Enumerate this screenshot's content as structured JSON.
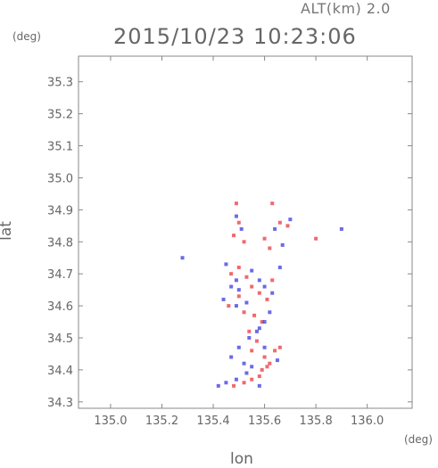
{
  "header": {
    "altitude": "ALT(km) 2.0",
    "datetime": "2015/10/23 10:23:06"
  },
  "axes": {
    "y_unit": "(deg)",
    "x_unit": "(deg)",
    "y_label": "lat",
    "x_label": "lon"
  },
  "chart_data": {
    "type": "scatter",
    "title": "2015/10/23 10:23:06",
    "subtitle": "ALT(km) 2.0",
    "xlabel": "lon",
    "ylabel": "lat",
    "xlim": [
      134.875,
      136.175
    ],
    "ylim": [
      34.28,
      35.38
    ],
    "xticks": [
      "135.0",
      "135.2",
      "135.4",
      "135.6",
      "135.8",
      "136.0"
    ],
    "yticks": [
      "34.3",
      "34.4",
      "34.5",
      "34.6",
      "34.7",
      "34.8",
      "34.9",
      "35.0",
      "35.1",
      "35.2",
      "35.3"
    ],
    "grid": false,
    "colors": {
      "positive": "#e8383d",
      "negative": "#3a3adf",
      "axis": "#888888"
    },
    "series": [
      {
        "values": [
          [
            135.49,
            34.92
          ],
          [
            135.5,
            34.86
          ],
          [
            135.48,
            34.82
          ],
          [
            135.52,
            34.8
          ],
          [
            135.63,
            34.92
          ],
          [
            135.66,
            34.86
          ],
          [
            135.69,
            34.85
          ],
          [
            135.6,
            34.81
          ],
          [
            135.62,
            34.78
          ],
          [
            135.8,
            34.81
          ],
          [
            135.47,
            34.7
          ],
          [
            135.5,
            34.72
          ],
          [
            135.53,
            34.69
          ],
          [
            135.55,
            34.66
          ],
          [
            135.58,
            34.64
          ],
          [
            135.61,
            34.62
          ],
          [
            135.63,
            34.68
          ],
          [
            135.5,
            34.63
          ],
          [
            135.46,
            34.6
          ],
          [
            135.52,
            34.58
          ],
          [
            135.56,
            34.57
          ],
          [
            135.59,
            34.55
          ],
          [
            135.54,
            34.52
          ],
          [
            135.57,
            34.49
          ],
          [
            135.55,
            34.46
          ],
          [
            135.6,
            34.44
          ],
          [
            135.62,
            34.42
          ],
          [
            135.64,
            34.46
          ],
          [
            135.66,
            34.47
          ],
          [
            135.59,
            34.4
          ],
          [
            135.58,
            34.38
          ],
          [
            135.61,
            34.41
          ],
          [
            135.55,
            34.37
          ],
          [
            135.52,
            34.36
          ],
          [
            135.48,
            34.35
          ]
        ],
        "sign": "positive"
      },
      {
        "values": [
          [
            135.49,
            34.88
          ],
          [
            135.51,
            34.84
          ],
          [
            135.64,
            34.84
          ],
          [
            135.67,
            34.79
          ],
          [
            135.7,
            34.87
          ],
          [
            135.45,
            34.73
          ],
          [
            135.49,
            34.68
          ],
          [
            135.47,
            34.66
          ],
          [
            135.5,
            34.65
          ],
          [
            135.55,
            34.71
          ],
          [
            135.58,
            34.68
          ],
          [
            135.6,
            34.66
          ],
          [
            135.63,
            34.64
          ],
          [
            135.62,
            34.58
          ],
          [
            135.49,
            34.6
          ],
          [
            135.53,
            34.61
          ],
          [
            135.58,
            34.53
          ],
          [
            135.54,
            34.5
          ],
          [
            135.5,
            34.47
          ],
          [
            135.47,
            34.44
          ],
          [
            135.52,
            34.42
          ],
          [
            135.55,
            34.41
          ],
          [
            135.53,
            34.39
          ],
          [
            135.49,
            34.37
          ],
          [
            135.45,
            34.36
          ],
          [
            135.42,
            34.35
          ],
          [
            135.58,
            34.35
          ],
          [
            135.6,
            34.47
          ],
          [
            135.65,
            34.43
          ],
          [
            135.57,
            34.52
          ],
          [
            135.44,
            34.62
          ],
          [
            135.66,
            34.72
          ],
          [
            135.28,
            34.75
          ],
          [
            135.9,
            34.84
          ],
          [
            135.6,
            34.55
          ]
        ],
        "sign": "negative"
      }
    ]
  }
}
